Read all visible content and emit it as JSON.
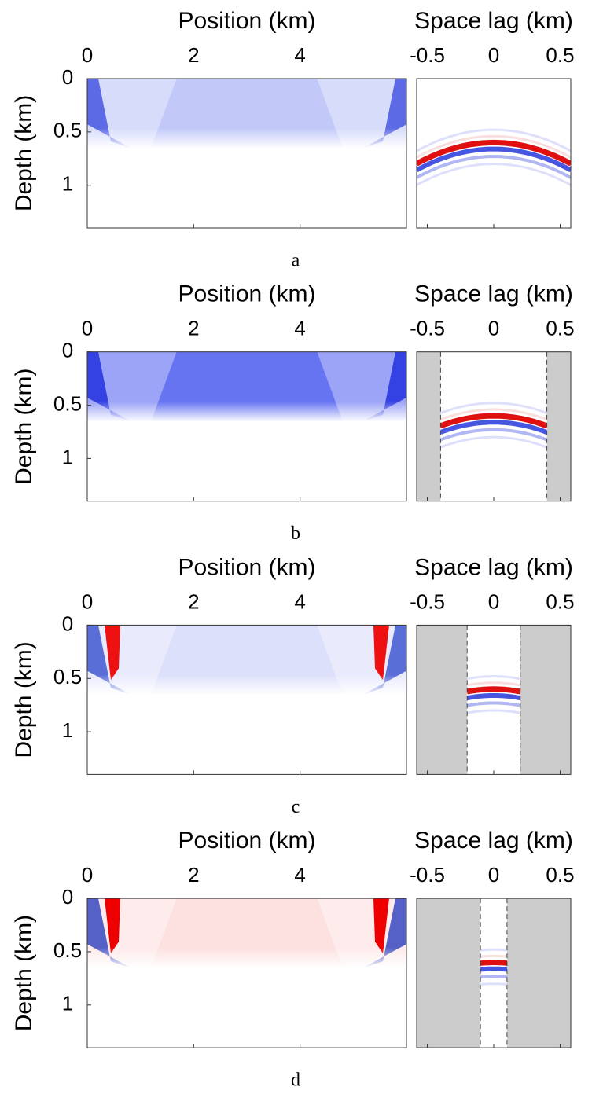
{
  "chart_data": [
    {
      "type": "heatmap",
      "xlabel": "Position (km)",
      "ylabel": "Depth (km)",
      "caption": "a",
      "xlim": [
        0,
        6
      ],
      "ylim": [
        0,
        1.4
      ],
      "xticks": [
        0,
        2,
        4
      ],
      "yticks": [
        0,
        0.5,
        1
      ]
    },
    {
      "type": "gather",
      "xlabel": "Space lag (km)",
      "xlim": [
        -0.58,
        0.58
      ],
      "ylim": [
        0,
        1.4
      ],
      "xticks": [
        -0.5,
        0,
        0.5
      ]
    },
    {
      "type": "heatmap",
      "xlabel": "Position (km)",
      "ylabel": "Depth (km)",
      "caption": "b",
      "xlim": [
        0,
        6
      ],
      "ylim": [
        0,
        1.4
      ],
      "xticks": [
        0,
        2,
        4
      ],
      "yticks": [
        0,
        0.5,
        1
      ]
    },
    {
      "type": "gather",
      "xlabel": "Space lag (km)",
      "xlim": [
        -0.58,
        0.58
      ],
      "ylim": [
        0,
        1.4
      ],
      "xticks": [
        -0.5,
        0,
        0.5
      ],
      "mask": [
        -0.4,
        0.4
      ]
    },
    {
      "type": "heatmap",
      "xlabel": "Position (km)",
      "ylabel": "Depth (km)",
      "caption": "c",
      "xlim": [
        0,
        6
      ],
      "ylim": [
        0,
        1.4
      ],
      "xticks": [
        0,
        2,
        4
      ],
      "yticks": [
        0,
        0.5,
        1
      ]
    },
    {
      "type": "gather",
      "xlabel": "Space lag (km)",
      "xlim": [
        -0.58,
        0.58
      ],
      "ylim": [
        0,
        1.4
      ],
      "xticks": [
        -0.5,
        0,
        0.5
      ],
      "mask": [
        -0.2,
        0.2
      ]
    },
    {
      "type": "heatmap",
      "xlabel": "Position (km)",
      "ylabel": "Depth (km)",
      "caption": "d",
      "xlim": [
        0,
        6
      ],
      "ylim": [
        0,
        1.4
      ],
      "xticks": [
        0,
        2,
        4
      ],
      "yticks": [
        0,
        0.5,
        1
      ]
    },
    {
      "type": "gather",
      "xlabel": "Space lag (km)",
      "xlim": [
        -0.58,
        0.58
      ],
      "ylim": [
        0,
        1.4
      ],
      "xticks": [
        -0.5,
        0,
        0.5
      ],
      "mask": [
        -0.1,
        0.1
      ]
    }
  ]
}
